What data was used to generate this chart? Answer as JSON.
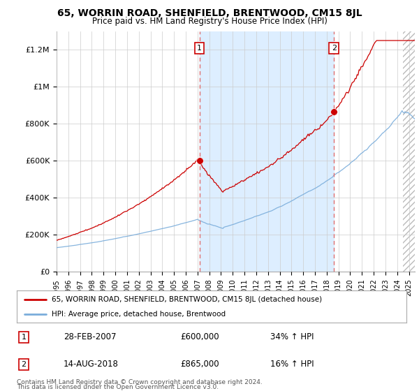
{
  "title": "65, WORRIN ROAD, SHENFIELD, BRENTWOOD, CM15 8JL",
  "subtitle": "Price paid vs. HM Land Registry's House Price Index (HPI)",
  "ylabel_ticks": [
    "£0",
    "£200K",
    "£400K",
    "£600K",
    "£800K",
    "£1M",
    "£1.2M"
  ],
  "ytick_values": [
    0,
    200000,
    400000,
    600000,
    800000,
    1000000,
    1200000
  ],
  "ylim_max": 1300000,
  "xlim_start": 1995.0,
  "xlim_end": 2025.5,
  "sale1_date": 2007.16,
  "sale1_price": 600000,
  "sale2_date": 2018.62,
  "sale2_price": 865000,
  "sale1_text": "28-FEB-2007",
  "sale1_amount": "£600,000",
  "sale1_pct": "34% ↑ HPI",
  "sale2_text": "14-AUG-2018",
  "sale2_amount": "£865,000",
  "sale2_pct": "16% ↑ HPI",
  "red_color": "#cc0000",
  "blue_color": "#7aaddb",
  "shade_color": "#ddeeff",
  "dashed_color": "#e07070",
  "hatch_color": "#cccccc",
  "grid_color": "#cccccc",
  "box_color": "#cc0000",
  "legend_label_red": "65, WORRIN ROAD, SHENFIELD, BRENTWOOD, CM15 8JL (detached house)",
  "legend_label_blue": "HPI: Average price, detached house, Brentwood",
  "footer1": "Contains HM Land Registry data © Crown copyright and database right 2024.",
  "footer2": "This data is licensed under the Open Government Licence v3.0."
}
